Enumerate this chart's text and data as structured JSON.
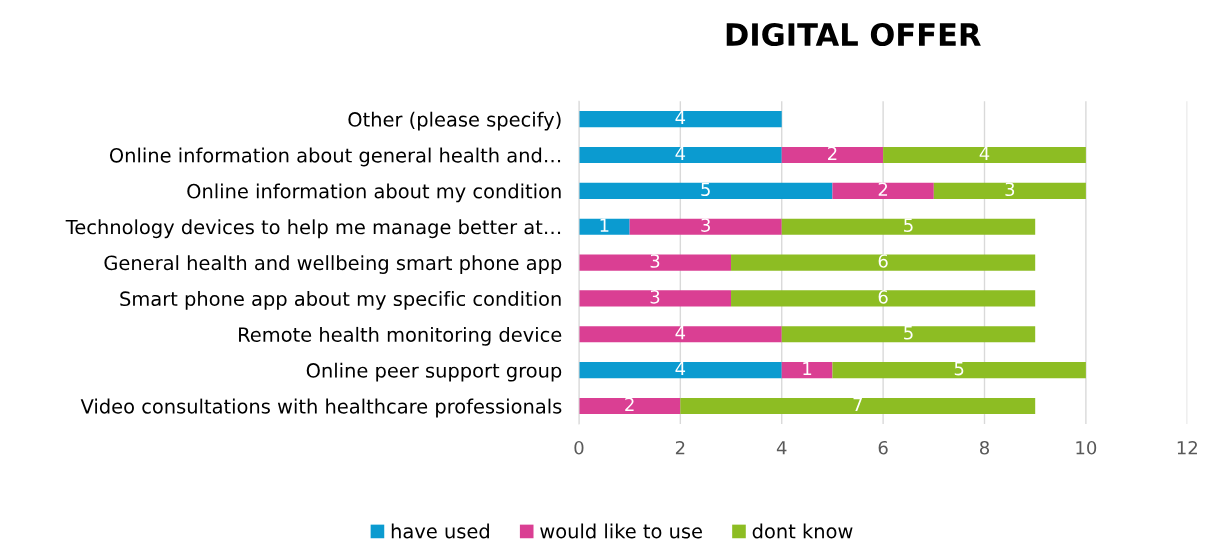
{
  "chart_data": {
    "type": "bar",
    "orientation": "horizontal",
    "stacked": true,
    "title": "DIGITAL OFFER",
    "categories": [
      "Other (please specify)",
      "Online information about general health and…",
      "Online information about my condition",
      "Technology devices to help me manage better at…",
      "General health and wellbeing smart phone app",
      "Smart phone app about my specific condition",
      "Remote health monitoring device",
      "Online peer support group",
      "Video consultations with healthcare professionals"
    ],
    "series": [
      {
        "name": "have used",
        "color": "#0b9bd0",
        "values": [
          4,
          4,
          5,
          1,
          0,
          0,
          0,
          4,
          0
        ],
        "value_labels": [
          "4",
          "4",
          "5",
          "1",
          null,
          null,
          null,
          "4",
          null
        ]
      },
      {
        "name": "would like to use",
        "color": "#da3f93",
        "values": [
          0,
          2,
          2,
          3,
          3,
          3,
          4,
          1,
          2
        ],
        "value_labels": [
          null,
          "2",
          "2",
          "3",
          "3",
          "3",
          "4",
          "1",
          "2"
        ]
      },
      {
        "name": "dont know",
        "color": "#8dbd23",
        "values": [
          0,
          4,
          3,
          5,
          6,
          6,
          5,
          5,
          7
        ],
        "value_labels": [
          null,
          "4",
          "3",
          "5",
          "6",
          "6",
          "5",
          "5",
          "7"
        ]
      }
    ],
    "xlim": [
      0,
      12
    ],
    "xticks": [
      0,
      2,
      4,
      6,
      8,
      10,
      12
    ],
    "grid": "x",
    "legend": "bottom"
  }
}
